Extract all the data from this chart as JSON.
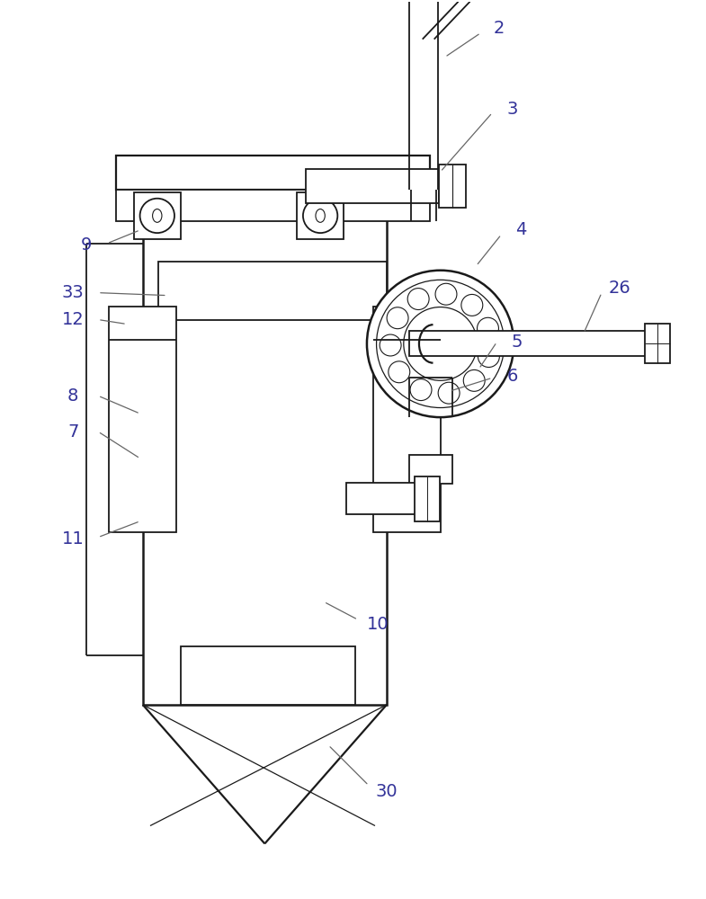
{
  "bg_color": "#ffffff",
  "line_color": "#1a1a1a",
  "label_color": "#333399",
  "figsize": [
    7.85,
    10.0
  ],
  "dpi": 100,
  "lw": 1.3
}
